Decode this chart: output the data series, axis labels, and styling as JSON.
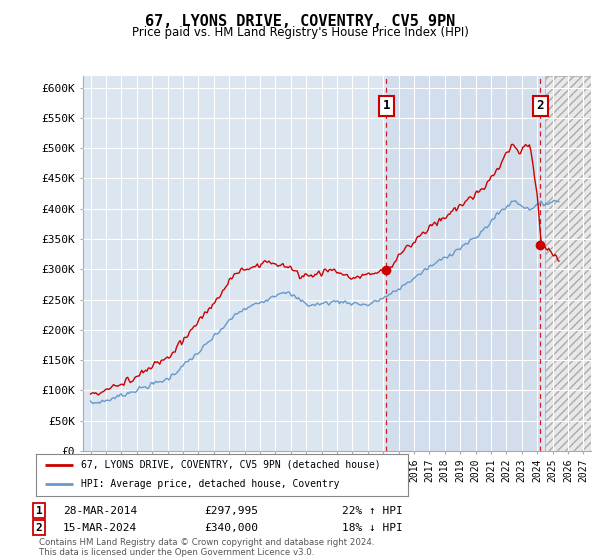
{
  "title": "67, LYONS DRIVE, COVENTRY, CV5 9PN",
  "subtitle": "Price paid vs. HM Land Registry's House Price Index (HPI)",
  "background_color": "#ffffff",
  "plot_bg_color": "#dce6f1",
  "grid_color": "#ffffff",
  "hpi_line_color": "#6699cc",
  "price_line_color": "#cc0000",
  "vline_color": "#cc0000",
  "ylabel_ticks": [
    "£0",
    "£50K",
    "£100K",
    "£150K",
    "£200K",
    "£250K",
    "£300K",
    "£350K",
    "£400K",
    "£450K",
    "£500K",
    "£550K",
    "£600K"
  ],
  "ytick_values": [
    0,
    50000,
    100000,
    150000,
    200000,
    250000,
    300000,
    350000,
    400000,
    450000,
    500000,
    550000,
    600000
  ],
  "transaction1": {
    "date": "28-MAR-2014",
    "price": 297995,
    "pct": "22%",
    "dir": "↑",
    "label": "1"
  },
  "transaction2": {
    "date": "15-MAR-2024",
    "price": 340000,
    "pct": "18%",
    "dir": "↓",
    "label": "2"
  },
  "t1_x": 2014.22,
  "t2_x": 2024.21,
  "legend_label1": "67, LYONS DRIVE, COVENTRY, CV5 9PN (detached house)",
  "legend_label2": "HPI: Average price, detached house, Coventry",
  "footer": "Contains HM Land Registry data © Crown copyright and database right 2024.\nThis data is licensed under the Open Government Licence v3.0.",
  "xmin": 1994.5,
  "xmax": 2027.5,
  "ymin": 0,
  "ymax": 620000,
  "shade_start": 2014.22,
  "shade_end": 2024.21,
  "hatch_start": 2024.5
}
